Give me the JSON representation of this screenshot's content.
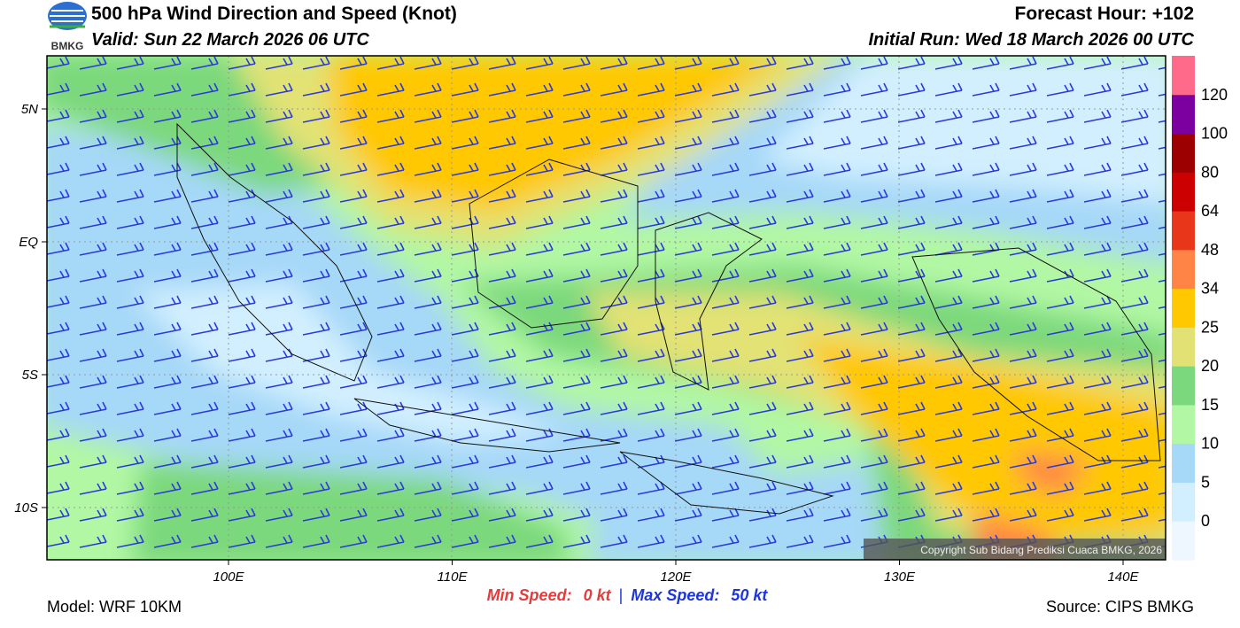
{
  "header": {
    "logo": "BMKG",
    "title": "500 hPa Wind Direction and Speed (Knot)",
    "valid": "Valid: Sun 22 March 2026 06 UTC",
    "forecast_hour": "Forecast Hour: +102",
    "initial_run": "Initial Run: Wed 18 March 2026 00 UTC"
  },
  "map": {
    "lat_labels": [
      "5N",
      "EQ",
      "5S",
      "10S"
    ],
    "lon_labels": [
      "100E",
      "110E",
      "120E",
      "130E",
      "140E"
    ],
    "copyright": "Copyright Sub Bidang Prediksi Cuaca BMKG, 2026"
  },
  "legend": {
    "labels": [
      "0",
      "5",
      "10",
      "15",
      "20",
      "25",
      "34",
      "48",
      "64",
      "80",
      "100",
      "120"
    ],
    "colors": [
      "#eef6ff",
      "#d2efff",
      "#a6d8f8",
      "#b2f7a4",
      "#7cd87c",
      "#e2e274",
      "#ffc800",
      "#ff8446",
      "#e8361a",
      "#cc0000",
      "#9c0000",
      "#7c00a0",
      "#ff6a8a"
    ]
  },
  "footer": {
    "model": "Model: WRF 10KM",
    "min_label": "Min Speed:",
    "min_value": "0 kt",
    "separator": "|",
    "max_label": "Max Speed:",
    "max_value": "50 kt",
    "source": "Source: CIPS BMKG"
  }
}
